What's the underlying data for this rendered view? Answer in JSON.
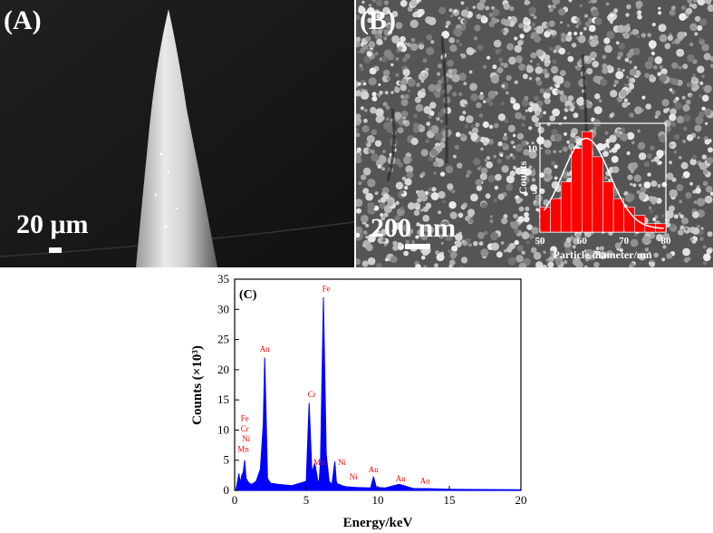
{
  "panel_a": {
    "label": "(A)",
    "scale_bar_text": "20 μm"
  },
  "panel_b": {
    "label": "(B)",
    "scale_bar_text": "200 nm"
  },
  "colors": {
    "histogram_bar": "#ff0000",
    "fit_curve": "#ffffff",
    "eds_spectrum": "#0000ff",
    "eds_peak_label": "#ff0000"
  },
  "chart_data": [
    {
      "type": "bar",
      "title": "",
      "xlabel": "Particle diameter/nm",
      "ylabel": "Counts",
      "xlim": [
        50,
        80
      ],
      "ylim": [
        0,
        13
      ],
      "x_ticks": [
        "50",
        "60",
        "70",
        "80"
      ],
      "y_ticks": [
        "5",
        "10"
      ],
      "bin_width": 2.5,
      "bin_centers": [
        51.25,
        53.75,
        56.25,
        58.75,
        61.25,
        63.75,
        66.25,
        68.75,
        71.25,
        73.75,
        76.25,
        78.75
      ],
      "values": [
        3,
        4,
        6,
        10,
        12,
        9,
        6,
        4,
        3,
        2,
        1,
        1
      ],
      "fit": {
        "type": "gaussian",
        "center": 61,
        "amplitude": 10.8,
        "sigma": 5.6,
        "baseline": 0.4
      }
    },
    {
      "type": "line",
      "label": "(C)",
      "title": "",
      "xlabel": "Energy/keV",
      "ylabel": "Counts (×10³)",
      "xlim": [
        0,
        20
      ],
      "ylim": [
        0,
        35
      ],
      "x_ticks": [
        "0",
        "5",
        "10",
        "15",
        "20"
      ],
      "y_ticks": [
        "0",
        "5",
        "10",
        "15",
        "20",
        "25",
        "30",
        "35"
      ],
      "series": [
        {
          "x": [
            0.1,
            0.2,
            0.3,
            0.4,
            0.5,
            0.6,
            0.7,
            0.8,
            1.0,
            1.2,
            1.5,
            1.8,
            2.0,
            2.1,
            2.2,
            2.3,
            2.5,
            3.0,
            4.0,
            5.0,
            5.2,
            5.4,
            5.6,
            5.8,
            5.9,
            6.0,
            6.2,
            6.4,
            6.6,
            6.8,
            7.0,
            7.1,
            7.2,
            7.3,
            7.5,
            7.8,
            8.5,
            9.5,
            9.7,
            9.9,
            10.5,
            11.5,
            12.5,
            13.5,
            15,
            17,
            20
          ],
          "y": [
            0.3,
            1.5,
            2.8,
            1.2,
            2.5,
            3.0,
            5.0,
            2.0,
            1.2,
            1.0,
            1.5,
            3.5,
            11.0,
            22.0,
            12.0,
            2.0,
            1.2,
            1.0,
            0.8,
            1.5,
            14.5,
            3.0,
            4.5,
            1.8,
            1.2,
            5.0,
            32.0,
            6.0,
            1.5,
            1.0,
            4.8,
            1.5,
            1.0,
            1.0,
            0.8,
            0.6,
            0.5,
            0.4,
            2.3,
            0.5,
            0.4,
            1.0,
            0.3,
            0.3,
            0.2,
            0.15,
            0.1
          ]
        }
      ],
      "peak_labels": [
        {
          "text": "Fe",
          "x": 6.4,
          "y": 33.0
        },
        {
          "text": "Au",
          "x": 2.1,
          "y": 23.0
        },
        {
          "text": "Cr",
          "x": 5.4,
          "y": 15.5
        },
        {
          "text": "Fe",
          "x": 0.7,
          "y": 11.5
        },
        {
          "text": "Cr",
          "x": 0.7,
          "y": 9.8
        },
        {
          "text": "Ni",
          "x": 0.8,
          "y": 8.1
        },
        {
          "text": "Mn",
          "x": 0.6,
          "y": 6.4
        },
        {
          "text": "Mn",
          "x": 5.9,
          "y": 4.2
        },
        {
          "text": "Ni",
          "x": 7.5,
          "y": 4.2
        },
        {
          "text": "Ni",
          "x": 8.3,
          "y": 1.8
        },
        {
          "text": "Au",
          "x": 9.7,
          "y": 3.0
        },
        {
          "text": "Au",
          "x": 11.6,
          "y": 1.5
        },
        {
          "text": "Au",
          "x": 13.3,
          "y": 1.1
        }
      ]
    }
  ]
}
